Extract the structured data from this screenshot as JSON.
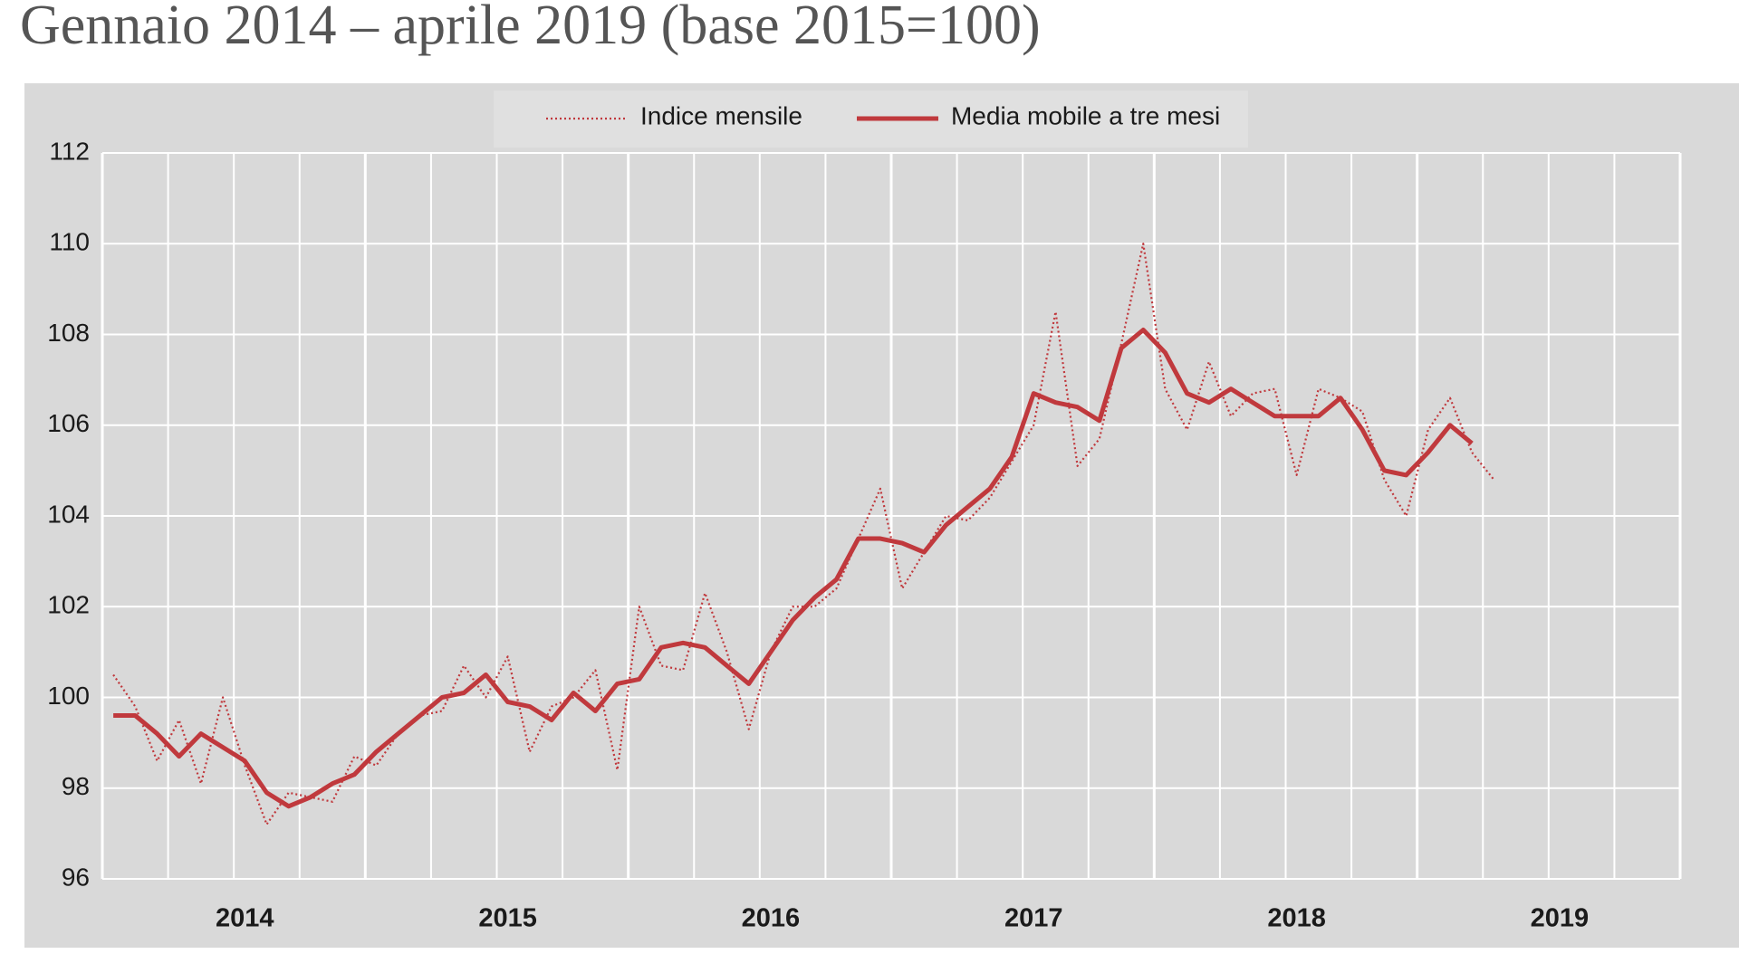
{
  "chart_data": {
    "type": "line",
    "title": "Gennaio 2014 – aprile 2019 (base 2015=100)",
    "categories": [
      null,
      null,
      null,
      null,
      null,
      null,
      "2014",
      null,
      null,
      null,
      null,
      null,
      null,
      null,
      null,
      null,
      null,
      null,
      "2015",
      null,
      null,
      null,
      null,
      null,
      null,
      null,
      null,
      null,
      null,
      null,
      "2016",
      null,
      null,
      null,
      null,
      null,
      null,
      null,
      null,
      null,
      null,
      null,
      "2017",
      null,
      null,
      null,
      null,
      null,
      null,
      null,
      null,
      null,
      null,
      null,
      "2018",
      null,
      null,
      null,
      null,
      null,
      null,
      null,
      null,
      null,
      null,
      null,
      "2019",
      null,
      null,
      null,
      null,
      null
    ],
    "series": [
      {
        "name": "Indice mensile",
        "color": "#c0393d",
        "style": "dotted",
        "values": [
          100.5,
          99.8,
          98.6,
          99.5,
          98.1,
          100.0,
          98.5,
          97.2,
          97.9,
          97.8,
          97.7,
          98.7,
          98.5,
          99.2,
          99.6,
          99.7,
          100.7,
          100.0,
          100.9,
          98.8,
          99.8,
          100.0,
          100.6,
          98.4,
          102.0,
          100.7,
          100.6,
          102.3,
          101.0,
          99.3,
          101.0,
          102.0,
          102.0,
          102.4,
          103.5,
          104.6,
          102.4,
          103.2,
          104.0,
          103.9,
          104.4,
          105.2,
          106.0,
          108.5,
          105.1,
          105.7,
          107.8,
          110.0,
          106.8,
          105.9,
          107.4,
          106.2,
          106.7,
          106.8,
          104.9,
          106.8,
          106.6,
          106.3,
          104.8,
          104.0,
          105.9,
          106.6,
          105.4,
          104.8,
          null,
          null,
          null,
          null,
          null,
          null,
          null,
          null
        ]
      },
      {
        "name": "Media mobile a tre mesi",
        "color": "#c0393d",
        "style": "solid",
        "values": [
          99.6,
          99.6,
          99.2,
          98.7,
          99.2,
          98.9,
          98.6,
          97.9,
          97.6,
          97.8,
          98.1,
          98.3,
          98.8,
          99.2,
          99.6,
          100.0,
          100.1,
          100.5,
          99.9,
          99.8,
          99.5,
          100.1,
          99.7,
          100.3,
          100.4,
          101.1,
          101.2,
          101.1,
          100.7,
          100.3,
          101.0,
          101.7,
          102.2,
          102.6,
          103.5,
          103.5,
          103.4,
          103.2,
          103.8,
          104.2,
          104.6,
          105.3,
          106.7,
          106.5,
          106.4,
          106.1,
          107.7,
          108.1,
          107.6,
          106.7,
          106.5,
          106.8,
          106.5,
          106.2,
          106.2,
          106.2,
          106.6,
          105.9,
          105.0,
          104.9,
          105.4,
          106.0,
          105.6,
          null,
          null,
          null,
          null,
          null,
          null,
          null,
          null,
          null
        ]
      }
    ],
    "ylim": [
      96,
      112
    ],
    "yticks": [
      96,
      98,
      100,
      102,
      104,
      106,
      108,
      110,
      112
    ],
    "grid": true,
    "legend": "top"
  }
}
